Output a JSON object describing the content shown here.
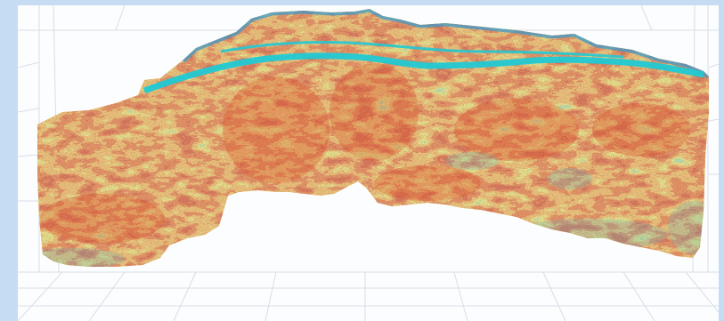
{
  "viewer": {
    "title": "",
    "frame_color": "#c5dcf2",
    "background_color": "#fcfdff",
    "grid_color": "#d9dde6"
  },
  "volume": {
    "render_mode": "3d-seismic-cross-section",
    "colormap": [
      "#4a86c7",
      "#37c7d6",
      "#8fcf78",
      "#e6d14d",
      "#ef9a3a",
      "#e0562a",
      "#c93a22"
    ],
    "dominant_color": "#e26a2c",
    "horizon_color": "#20c9d4"
  }
}
